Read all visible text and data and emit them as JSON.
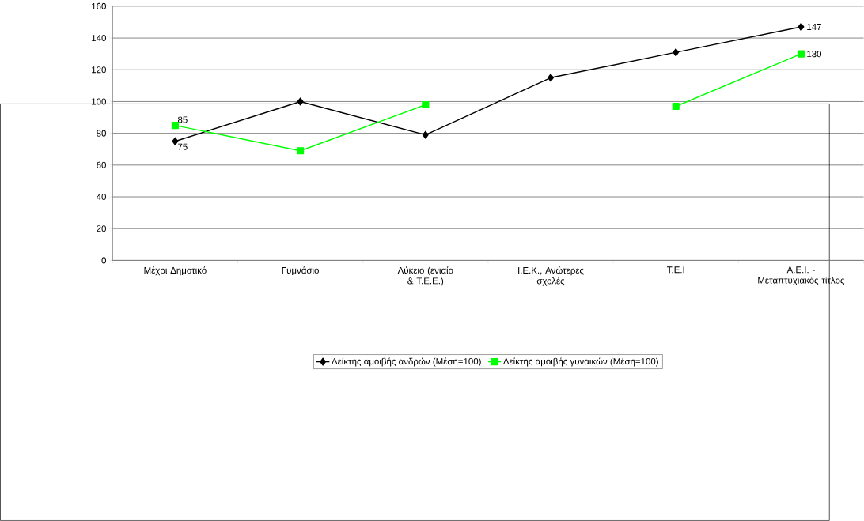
{
  "chart_data": {
    "type": "line",
    "categories": [
      "Μέχρι Δημοτικό",
      "Γυμνάσιο",
      "Λύκειο (ενιαίο & Τ.Ε.Ε.)",
      "Ι.Ε.Κ., Ανώτερες σχολές",
      "Τ.Ε.Ι",
      "Α.Ε.Ι. - Μεταπτυχιακός τίτλος"
    ],
    "series": [
      {
        "name": "Δείκτης αμοιβής ανδρών (Μέση=100)",
        "color": "#000000",
        "marker": "diamond",
        "values": [
          75,
          100,
          79,
          115,
          131,
          147
        ],
        "value_labels": [
          "75",
          null,
          null,
          null,
          null,
          "147"
        ]
      },
      {
        "name": "Δείκτης αμοιβής γυναικών (Μέση=100)",
        "color": "#00ff00",
        "marker": "square",
        "values": [
          85,
          69,
          98,
          null,
          97,
          130
        ],
        "value_labels": [
          "85",
          null,
          null,
          null,
          null,
          "130"
        ]
      }
    ],
    "ylim": [
      0,
      160
    ],
    "yticks": [
      0,
      20,
      40,
      60,
      80,
      100,
      120,
      140,
      160
    ],
    "grid": "y",
    "legend": "bottom"
  }
}
